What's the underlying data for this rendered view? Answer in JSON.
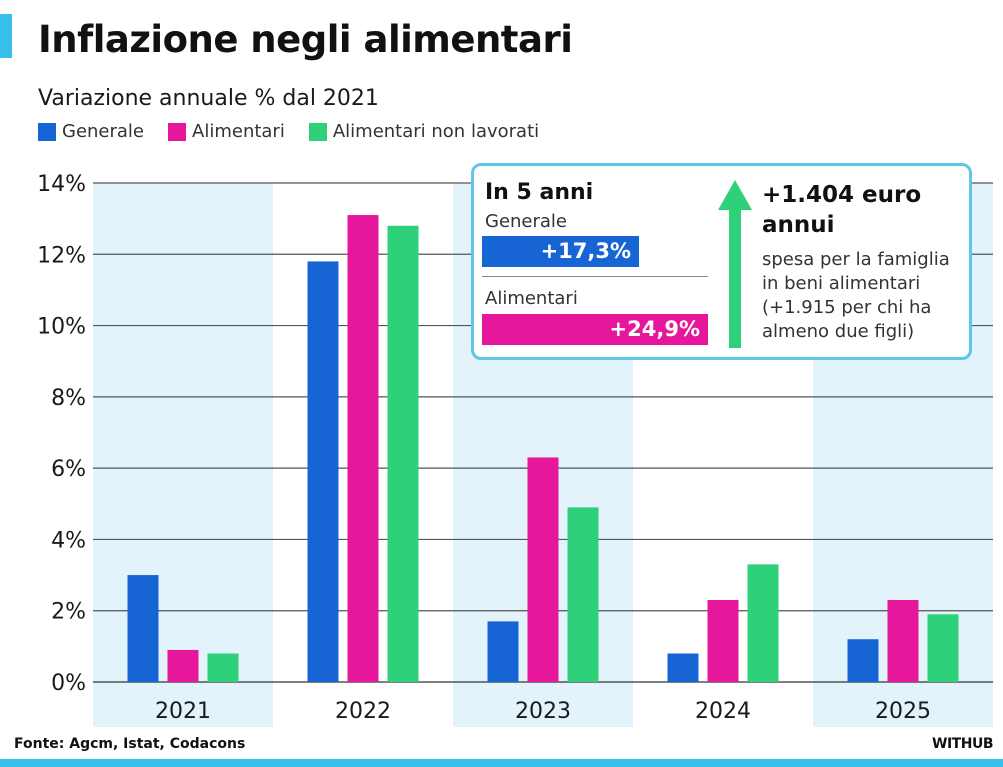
{
  "header": {
    "title": "Inflazione negli alimentari",
    "subtitle": "Variazione annuale % dal 2021"
  },
  "legend": [
    {
      "label": "Generale",
      "color": "#1765d4"
    },
    {
      "label": "Alimentari",
      "color": "#e6179a"
    },
    {
      "label": "Alimentari non lavorati",
      "color": "#2fd07a"
    }
  ],
  "chart_data": {
    "type": "bar",
    "title": "Inflazione negli alimentari",
    "subtitle": "Variazione annuale % dal 2021",
    "xlabel": "",
    "ylabel": "",
    "categories": [
      "2021",
      "2022",
      "2023",
      "2024",
      "2025"
    ],
    "series": [
      {
        "name": "Generale",
        "color": "#1765d4",
        "values": [
          3.0,
          11.8,
          1.7,
          0.8,
          1.2
        ]
      },
      {
        "name": "Alimentari",
        "color": "#e6179a",
        "values": [
          0.9,
          13.1,
          6.3,
          2.3,
          2.3
        ]
      },
      {
        "name": "Alimentari non lavorati",
        "color": "#2fd07a",
        "values": [
          0.8,
          12.8,
          4.9,
          3.3,
          1.9
        ]
      }
    ],
    "ylim": [
      0,
      14
    ],
    "yticks": [
      {
        "value": 0,
        "label": "0%"
      },
      {
        "value": 2,
        "label": "2%"
      },
      {
        "value": 4,
        "label": "4%"
      },
      {
        "value": 6,
        "label": "6%"
      },
      {
        "value": 8,
        "label": "8%"
      },
      {
        "value": 10,
        "label": "10%"
      },
      {
        "value": 12,
        "label": "12%"
      },
      {
        "value": 14,
        "label": "14%"
      }
    ],
    "grid": true,
    "legend_position": "top-left",
    "band_color": "#e3f3fb"
  },
  "info_box": {
    "heading": "In 5 anni",
    "generale_label": "Generale",
    "generale_value": "+17,3%",
    "generale_pct": 17.3,
    "generale_color": "#1765d4",
    "alimentari_label": "Alimentari",
    "alimentari_value": "+24,9%",
    "alimentari_pct": 24.9,
    "alimentari_color": "#e6179a",
    "amount": "+1.404 euro annui",
    "description": "spesa per la famiglia in beni alimentari (+1.915 per chi ha almeno due figli)",
    "arrow_color": "#2fd07a"
  },
  "footer": {
    "source": "Fonte: Agcm, Istat, Codacons",
    "brand": "WITHUB"
  }
}
